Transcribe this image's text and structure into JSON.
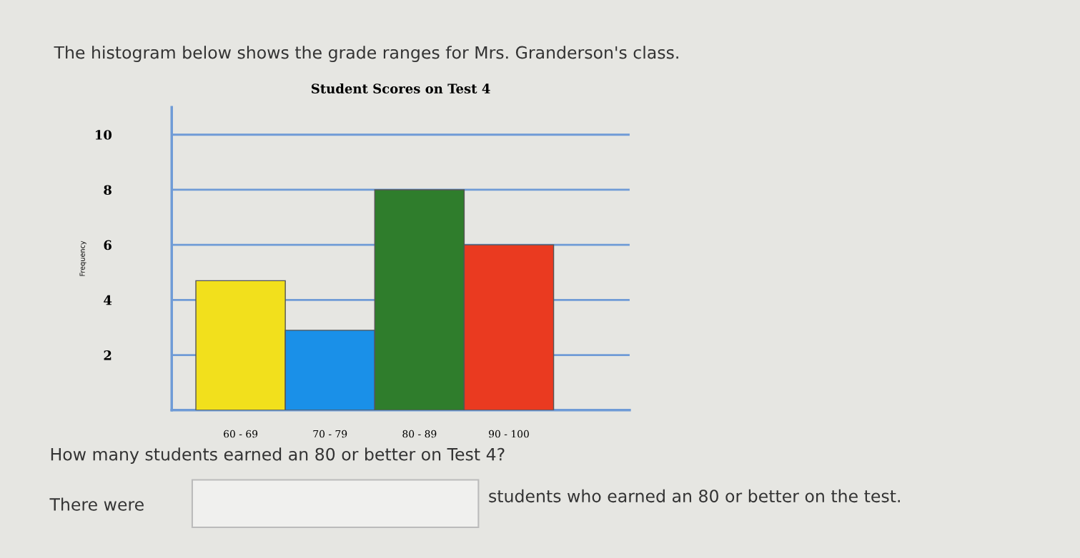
{
  "chart_data": {
    "type": "bar",
    "title": "Student Scores on Test 4",
    "subtitle": "The histogram below shows the grade ranges for Mrs. Granderson's class.",
    "ylabel": "Frequency",
    "categories": [
      "60 - 69",
      "70 - 79",
      "80 - 89",
      "90 - 100"
    ],
    "values": [
      4.7,
      2.9,
      8,
      6
    ],
    "colors": [
      "#f2e01c",
      "#1a90e8",
      "#2f7d2c",
      "#ea3a20"
    ],
    "ylim": [
      0,
      11
    ],
    "yticks": [
      2,
      4,
      6,
      8,
      10
    ],
    "grid": "y",
    "annotations": [
      "How many students earned an 80 or better on Test 4?",
      "There were",
      "students who earned an 80 or better on the test."
    ]
  }
}
